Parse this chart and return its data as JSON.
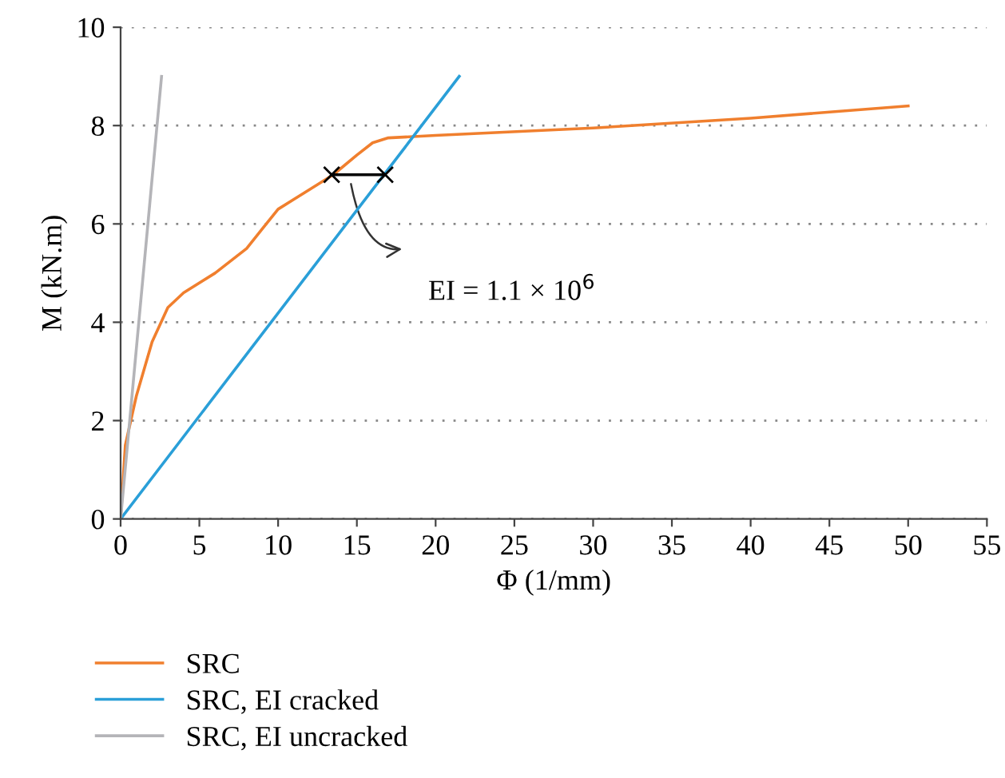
{
  "chart_data": {
    "type": "line",
    "xlabel": "Φ (1/mm)",
    "ylabel": "M (kN.m)",
    "xlim": [
      0,
      55
    ],
    "xticks": [
      0,
      5,
      10,
      15,
      20,
      25,
      30,
      35,
      40,
      45,
      50,
      55
    ],
    "ylim": [
      0,
      10
    ],
    "yticks": [
      0,
      2,
      4,
      6,
      8,
      10
    ],
    "grid": "y",
    "legend": "bottom",
    "marker": "none",
    "line_style": "solid",
    "series": [
      {
        "name": "SRC",
        "color": "#f07f2e",
        "x": [
          0,
          0.3,
          1,
          2,
          3,
          4,
          6,
          8,
          9,
          10,
          12,
          13.5,
          15,
          16,
          17,
          20,
          30,
          40,
          50
        ],
        "values": [
          0,
          1.5,
          2.5,
          3.6,
          4.3,
          4.6,
          5.0,
          5.5,
          5.9,
          6.3,
          6.7,
          7.0,
          7.4,
          7.65,
          7.75,
          7.8,
          7.95,
          8.15,
          8.4
        ]
      },
      {
        "name": "SRC, EI cracked",
        "color": "#2a9fd8",
        "x": [
          0,
          21.5
        ],
        "values": [
          0,
          9
        ]
      },
      {
        "name": "SRC, EI uncracked",
        "color": "#b4b4b8",
        "x": [
          0,
          2.6
        ],
        "values": [
          0,
          9
        ]
      },
      {
        "color": "#000000",
        "marker": "cross",
        "x": [
          13.4,
          16.8
        ],
        "values": [
          7,
          7
        ]
      }
    ],
    "annotations": [
      "EI = 1.1 × 10$^{6}$"
    ]
  }
}
